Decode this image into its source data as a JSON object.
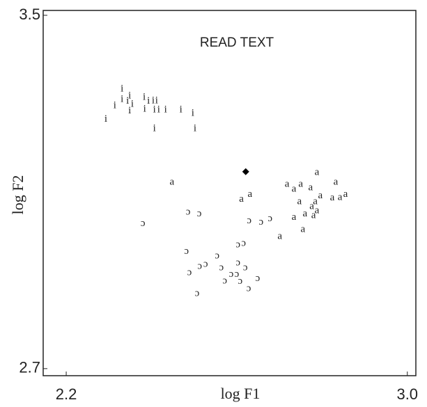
{
  "chart_data": {
    "type": "scatter",
    "annotation": "READ TEXT",
    "xlabel": "log F1",
    "ylabel": "log F2",
    "xlim": [
      2.146,
      3.02
    ],
    "ylim": [
      2.684,
      3.511
    ],
    "xticks": [
      2.2,
      {
        "value": 3.0,
        "label": "3.0"
      }
    ],
    "yticks": [
      2.7,
      3.5
    ],
    "series": [
      {
        "name": "i",
        "color": "#222",
        "x": [
          2.293,
          2.314,
          2.331,
          2.331,
          2.344,
          2.349,
          2.355,
          2.383,
          2.384,
          2.393,
          2.404,
          2.407,
          2.412,
          2.417,
          2.433,
          2.469,
          2.497,
          2.407,
          2.502,
          2.349
        ],
        "y": [
          3.264,
          3.295,
          3.333,
          3.309,
          3.305,
          3.283,
          3.298,
          3.314,
          3.287,
          3.305,
          3.306,
          3.286,
          3.306,
          3.286,
          3.286,
          3.286,
          3.278,
          3.243,
          3.243,
          3.317
        ]
      },
      {
        "name": "a",
        "color": "#222",
        "x": [
          2.448,
          2.611,
          2.631,
          2.718,
          2.734,
          2.75,
          2.773,
          2.788,
          2.832,
          2.747,
          2.796,
          2.776,
          2.788,
          2.734,
          2.76,
          2.78,
          2.755,
          2.701,
          2.824,
          2.842,
          2.855,
          2.784
        ],
        "y": [
          3.122,
          3.083,
          3.094,
          3.117,
          3.106,
          3.117,
          3.109,
          3.144,
          3.122,
          3.078,
          3.091,
          3.067,
          3.057,
          3.042,
          3.05,
          3.046,
          3.015,
          2.999,
          3.086,
          3.087,
          3.094,
          3.078
        ]
      },
      {
        "name": "ɔ",
        "color": "#222",
        "x": [
          2.38,
          2.486,
          2.512,
          2.482,
          2.489,
          2.513,
          2.527,
          2.554,
          2.564,
          2.572,
          2.587,
          2.6,
          2.603,
          2.608,
          2.603,
          2.616,
          2.628,
          2.649,
          2.629,
          2.657,
          2.678,
          2.507,
          2.62
        ],
        "y": [
          3.028,
          3.054,
          3.05,
          2.965,
          2.917,
          2.931,
          2.936,
          2.955,
          2.928,
          2.898,
          2.913,
          2.913,
          2.939,
          2.897,
          2.98,
          2.983,
          2.881,
          2.904,
          3.034,
          3.031,
          3.039,
          2.87,
          2.928
        ]
      },
      {
        "marker": "diamond",
        "color": "#000",
        "x": [
          2.621
        ],
        "y": [
          3.146
        ]
      }
    ]
  }
}
